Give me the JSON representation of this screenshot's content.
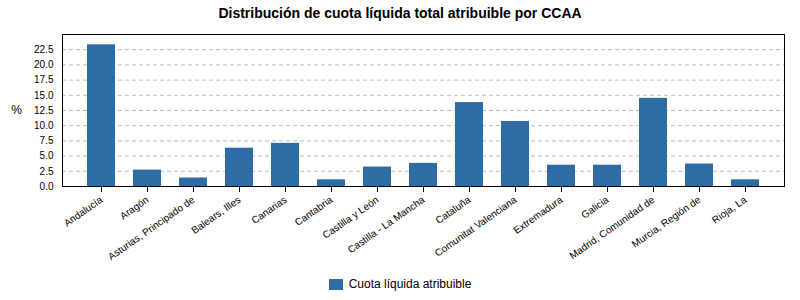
{
  "chart_data": {
    "type": "bar",
    "title": "Distribución de cuota líquida total atribuible por CCAA",
    "ylabel": "%",
    "categories": [
      "Andalucía",
      "Aragón",
      "Asturias, Principado de",
      "Balears, Illes",
      "Canarias",
      "Cantabria",
      "Castilla y León",
      "Castilla - La Mancha",
      "Cataluña",
      "Comunitat Valenciana",
      "Extremadura",
      "Galicia",
      "Madrid, Comunidad de",
      "Murcia, Región de",
      "Rioja, La"
    ],
    "series": [
      {
        "name": "Cuota líquida atribuible",
        "color": "#2e6da4",
        "values": [
          23.3,
          2.7,
          1.4,
          6.3,
          7.1,
          1.1,
          3.2,
          3.8,
          13.8,
          10.7,
          3.5,
          3.5,
          14.5,
          3.7,
          1.1
        ]
      }
    ],
    "ylim": [
      0,
      25
    ],
    "yticks": [
      {
        "value": 0,
        "label": "0.0"
      },
      2.5,
      {
        "value": 5,
        "label": "5.0"
      },
      7.5,
      {
        "value": 10,
        "label": "10.0"
      },
      12.5,
      {
        "value": 15,
        "label": "15.0"
      },
      17.5,
      {
        "value": 20,
        "label": "20.0"
      },
      22.5
    ],
    "grid": true,
    "legend": "bottom"
  }
}
